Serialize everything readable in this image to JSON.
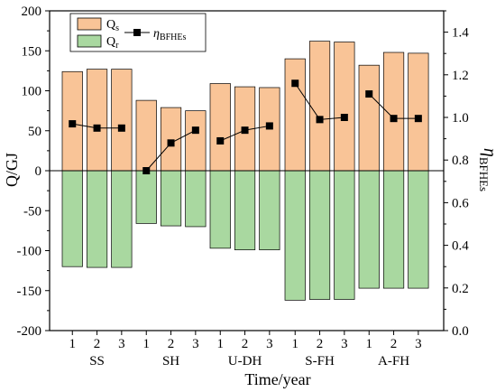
{
  "chart_data": {
    "type": "bar",
    "xlabel": "Time/year",
    "ylabel": "Q/GJ",
    "y2label": {
      "main": "η",
      "sub": "BFHEs"
    },
    "ylim": [
      -200,
      200
    ],
    "y2lim": [
      0.0,
      1.5
    ],
    "yticks": [
      -200,
      -150,
      -100,
      -50,
      0,
      50,
      100,
      150,
      200
    ],
    "y2ticks": [
      "0.0",
      "0.2",
      "0.4",
      "0.6",
      "0.8",
      "1.0",
      "1.2",
      "1.4"
    ],
    "groups": [
      "SS",
      "SH",
      "U-DH",
      "S-FH",
      "A-FH"
    ],
    "categories": [
      "1",
      "2",
      "3",
      "1",
      "2",
      "3",
      "1",
      "2",
      "3",
      "1",
      "2",
      "3",
      "1",
      "2",
      "3"
    ],
    "legend_placement": "top-left",
    "series": [
      {
        "name": {
          "main": "Q",
          "sub": "s"
        },
        "type": "bar",
        "axis": "left",
        "color": "#f9c497",
        "values": [
          124,
          127,
          127,
          88,
          79,
          75,
          109,
          105,
          104,
          140,
          162,
          161,
          132,
          148,
          147
        ]
      },
      {
        "name": {
          "main": "Q",
          "sub": "r"
        },
        "type": "bar",
        "axis": "left",
        "color": "#a9d8a0",
        "values": [
          -120,
          -121,
          -121,
          -66,
          -69,
          -70,
          -97,
          -99,
          -99,
          -162,
          -161,
          -161,
          -147,
          -147,
          -147
        ]
      },
      {
        "name": {
          "main": "η",
          "sub": "BFHEs"
        },
        "type": "line",
        "axis": "right",
        "color": "#000000",
        "segments": [
          [
            0,
            2
          ],
          [
            3,
            5
          ],
          [
            6,
            8
          ],
          [
            9,
            11
          ],
          [
            12,
            14
          ]
        ],
        "values": [
          0.97,
          0.95,
          0.95,
          0.75,
          0.88,
          0.94,
          0.89,
          0.94,
          0.96,
          1.16,
          0.99,
          1.0,
          1.11,
          0.995,
          0.995
        ]
      }
    ]
  }
}
